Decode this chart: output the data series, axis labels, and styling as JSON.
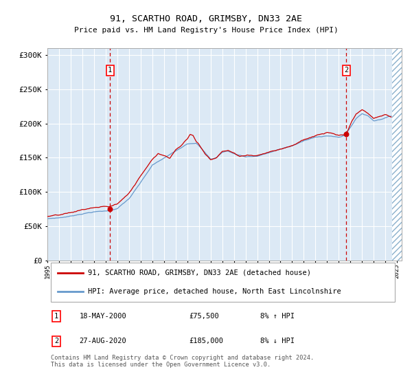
{
  "title": "91, SCARTHO ROAD, GRIMSBY, DN33 2AE",
  "subtitle": "Price paid vs. HM Land Registry's House Price Index (HPI)",
  "background_color": "#dce9f5",
  "plot_bg_color": "#dce9f5",
  "hatch_color": "#9ab8d0",
  "red_line_color": "#cc0000",
  "blue_line_color": "#6699cc",
  "grid_color": "#ffffff",
  "ylim": [
    0,
    310000
  ],
  "yticks": [
    0,
    50000,
    100000,
    150000,
    200000,
    250000,
    300000
  ],
  "ytick_labels": [
    "£0",
    "£50K",
    "£100K",
    "£150K",
    "£200K",
    "£250K",
    "£300K"
  ],
  "annotation1": {
    "label": "1",
    "year": 2000.38,
    "price": 75500
  },
  "annotation2": {
    "label": "2",
    "year": 2020.65,
    "price": 185000
  },
  "legend_line1": "91, SCARTHO ROAD, GRIMSBY, DN33 2AE (detached house)",
  "legend_line2": "HPI: Average price, detached house, North East Lincolnshire",
  "table_row1": [
    "1",
    "18-MAY-2000",
    "£75,500",
    "8% ↑ HPI"
  ],
  "table_row2": [
    "2",
    "27-AUG-2020",
    "£185,000",
    "8% ↓ HPI"
  ],
  "footer": "Contains HM Land Registry data © Crown copyright and database right 2024.\nThis data is licensed under the Open Government Licence v3.0."
}
